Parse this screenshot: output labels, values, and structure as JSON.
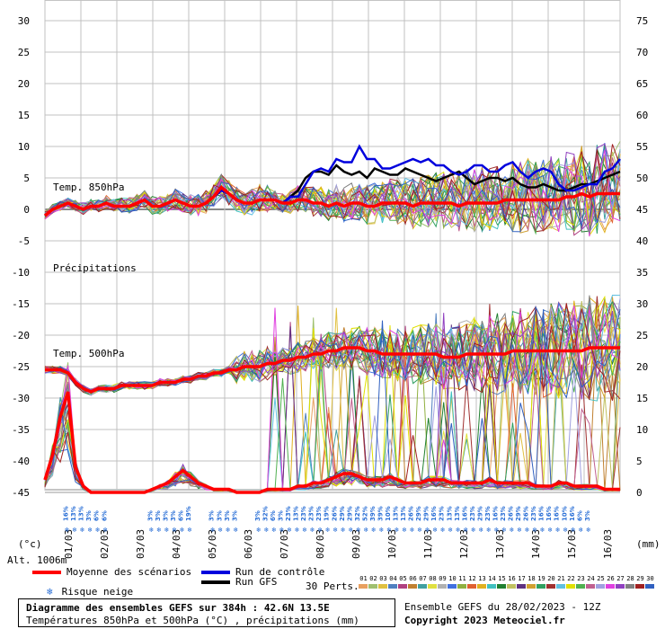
{
  "chart_data": {
    "type": "line",
    "left_axis": {
      "ticks": [
        30,
        25,
        20,
        15,
        10,
        5,
        0,
        -5,
        -10,
        -15,
        -20,
        -25,
        -30,
        -35,
        -40,
        -45
      ],
      "unit_label": "(°c)",
      "range": [
        -45,
        30
      ]
    },
    "right_axis": {
      "ticks": [
        75,
        70,
        65,
        60,
        55,
        50,
        45,
        40,
        35,
        30,
        25,
        20,
        15,
        10,
        5,
        0
      ],
      "unit_label": "(mm)",
      "range": [
        0,
        75
      ]
    },
    "x_ticks": [
      "01/03",
      "02/03",
      "03/03",
      "04/03",
      "05/03",
      "06/03",
      "07/03",
      "08/03",
      "09/03",
      "10/03",
      "11/03",
      "12/03",
      "13/03",
      "14/03",
      "15/03",
      "16/03"
    ],
    "altitude_label": "Alt. 1006m",
    "annotations": {
      "t850": "Temp. 850hPa",
      "precip": "Précipitations",
      "t500": "Temp. 500hPa"
    },
    "snow_risk": [
      {
        "t": 3,
        "v": "16%"
      },
      {
        "t": 4,
        "v": "13%"
      },
      {
        "t": 5,
        "v": "13%"
      },
      {
        "t": 6,
        "v": "3%"
      },
      {
        "t": 7,
        "v": "6%"
      },
      {
        "t": 8,
        "v": "6%"
      },
      {
        "t": 14,
        "v": "3%"
      },
      {
        "t": 15,
        "v": "3%"
      },
      {
        "t": 16,
        "v": "3%"
      },
      {
        "t": 17,
        "v": "3%"
      },
      {
        "t": 18,
        "v": "6%"
      },
      {
        "t": 19,
        "v": "19%"
      },
      {
        "t": 22,
        "v": "3%"
      },
      {
        "t": 23,
        "v": "3%"
      },
      {
        "t": 24,
        "v": "3%"
      },
      {
        "t": 25,
        "v": "3%"
      },
      {
        "t": 28,
        "v": "3%"
      },
      {
        "t": 29,
        "v": "32%"
      },
      {
        "t": 30,
        "v": "6%"
      },
      {
        "t": 31,
        "v": "3%"
      },
      {
        "t": 32,
        "v": "23%"
      },
      {
        "t": 33,
        "v": "13%"
      },
      {
        "t": 34,
        "v": "23%"
      },
      {
        "t": 35,
        "v": "23%"
      },
      {
        "t": 36,
        "v": "23%"
      },
      {
        "t": 37,
        "v": "19%"
      },
      {
        "t": 38,
        "v": "26%"
      },
      {
        "t": 39,
        "v": "29%"
      },
      {
        "t": 40,
        "v": "29%"
      },
      {
        "t": 41,
        "v": "32%"
      },
      {
        "t": 42,
        "v": "52%"
      },
      {
        "t": 43,
        "v": "39%"
      },
      {
        "t": 44,
        "v": "39%"
      },
      {
        "t": 45,
        "v": "10%"
      },
      {
        "t": 46,
        "v": "13%"
      },
      {
        "t": 47,
        "v": "13%"
      },
      {
        "t": 48,
        "v": "26%"
      },
      {
        "t": 49,
        "v": "29%"
      },
      {
        "t": 50,
        "v": "29%"
      },
      {
        "t": 51,
        "v": "16%"
      },
      {
        "t": 52,
        "v": "23%"
      },
      {
        "t": 53,
        "v": "13%"
      },
      {
        "t": 54,
        "v": "13%"
      },
      {
        "t": 55,
        "v": "16%"
      },
      {
        "t": 56,
        "v": "23%"
      },
      {
        "t": 57,
        "v": "29%"
      },
      {
        "t": 58,
        "v": "23%"
      },
      {
        "t": 59,
        "v": "16%"
      },
      {
        "t": 60,
        "v": "23%"
      },
      {
        "t": 61,
        "v": "26%"
      },
      {
        "t": 62,
        "v": "29%"
      },
      {
        "t": 63,
        "v": "26%"
      },
      {
        "t": 64,
        "v": "23%"
      },
      {
        "t": 65,
        "v": "16%"
      },
      {
        "t": 66,
        "v": "16%"
      },
      {
        "t": 67,
        "v": "16%"
      },
      {
        "t": 68,
        "v": "10%"
      },
      {
        "t": 69,
        "v": "16%"
      },
      {
        "t": 70,
        "v": "6%"
      },
      {
        "t": 71,
        "v": "3%"
      }
    ],
    "series_summary": {
      "t850_mean": [
        -1,
        0,
        0.5,
        1,
        0.5,
        0,
        0.5,
        0.5,
        1,
        0.5,
        0.5,
        0.5,
        1,
        1.5,
        0.5,
        0.5,
        1,
        1.5,
        1,
        0.5,
        0.5,
        1,
        2,
        3.5,
        2.5,
        1.5,
        1,
        1,
        1.5,
        1.5,
        1.5,
        1,
        1,
        1.5,
        1.5,
        1,
        1,
        0.5,
        1,
        0.5,
        1,
        1,
        0.5,
        0.5,
        1,
        1,
        1,
        1,
        0.5,
        1,
        1,
        1,
        1,
        1,
        0.5,
        1,
        1,
        1,
        1,
        1,
        1.5,
        1.5,
        1.5,
        1.5,
        1.5,
        1.5,
        1.5,
        1.5,
        2,
        2,
        2.5,
        2,
        2.5,
        2.5,
        2.5,
        2.5
      ],
      "t500_mean": [
        -25.5,
        -25.5,
        -25.5,
        -26,
        -27.5,
        -28.5,
        -29,
        -28.5,
        -28.5,
        -28.5,
        -28,
        -28,
        -28,
        -28,
        -28,
        -27.5,
        -27.5,
        -27.5,
        -27,
        -27,
        -26.5,
        -26.5,
        -26,
        -26,
        -25.5,
        -25.5,
        -25,
        -25,
        -25,
        -24.5,
        -24.5,
        -24,
        -24,
        -23.5,
        -23.5,
        -23,
        -23,
        -22.5,
        -22.5,
        -22,
        -22,
        -22,
        -22.5,
        -22.5,
        -23,
        -23,
        -23,
        -23,
        -23,
        -23,
        -23,
        -23,
        -23.5,
        -23.5,
        -23.5,
        -23,
        -23,
        -23,
        -23,
        -23,
        -23,
        -22.5,
        -22.5,
        -22.5,
        -22.5,
        -22.5,
        -22.5,
        -22.5,
        -22.5,
        -22.5,
        -22.5,
        -22,
        -22,
        -22,
        -22,
        -22
      ],
      "precip_mean_mm": [
        2,
        6,
        12,
        16,
        4,
        1,
        0,
        0,
        0,
        0,
        0,
        0,
        0,
        0,
        0.5,
        1,
        1.5,
        2.5,
        3.5,
        2.5,
        1.5,
        1,
        0.5,
        0.5,
        0.5,
        0,
        0,
        0,
        0,
        0.5,
        0.5,
        0.5,
        0.5,
        1,
        1,
        1.5,
        1.5,
        2,
        2.5,
        3,
        3,
        2.5,
        2,
        2,
        2,
        2.5,
        2,
        1.5,
        1.5,
        1.5,
        2,
        2,
        2,
        1.5,
        1.5,
        1.5,
        1.5,
        1.5,
        2,
        1.5,
        1.5,
        1.5,
        1.5,
        1.5,
        1,
        1,
        1,
        1.5,
        1.5,
        1,
        1,
        1,
        1,
        0.5,
        0.5,
        0.5
      ],
      "t850_control": [
        -1,
        0,
        0.5,
        1,
        0.5,
        0,
        0.5,
        0.5,
        1,
        0.5,
        0.5,
        0.5,
        1,
        1.5,
        0.5,
        0.5,
        1,
        1.5,
        1,
        0.5,
        0.5,
        1,
        2,
        3,
        2.5,
        1.5,
        1,
        1,
        1.5,
        1.5,
        1.5,
        1,
        2,
        2,
        4,
        6,
        6.5,
        6,
        8,
        7.5,
        7.5,
        10,
        8,
        8,
        6.5,
        6.5,
        7,
        7.5,
        8,
        7.5,
        8,
        7,
        7,
        6,
        5.5,
        6,
        7,
        7,
        6,
        6,
        7,
        7.5,
        6,
        5,
        6,
        6.5,
        6,
        4,
        3,
        3,
        3.5,
        4,
        4,
        6,
        6.5,
        8
      ],
      "t850_gfs": [
        -1,
        0,
        0.5,
        1,
        0.5,
        0,
        0.5,
        0.5,
        1,
        0.5,
        0.5,
        0.5,
        1,
        1.5,
        0.5,
        0.5,
        1,
        1.5,
        1,
        0.5,
        0.5,
        1,
        2,
        3,
        2.5,
        1.5,
        1,
        1,
        1.5,
        1.5,
        1.5,
        1,
        2,
        3,
        5,
        6,
        6,
        5.5,
        7,
        6,
        5.5,
        6,
        5,
        6.5,
        6,
        5.5,
        5.5,
        6.5,
        6,
        5.5,
        5,
        4.5,
        5,
        5.5,
        6,
        5,
        4,
        4.5,
        5,
        5,
        4.5,
        5,
        4,
        3.5,
        3.5,
        4,
        3.5,
        3,
        3,
        3.5,
        4,
        4,
        4.5,
        5,
        5.5,
        6
      ]
    },
    "legend": {
      "mean": "Moyenne des scénarios",
      "control": "Run de contrôle",
      "gfs": "Run GFS",
      "snow": "Risque neige",
      "perts_title": "30 Perts.",
      "pert_ids": [
        "01",
        "02",
        "03",
        "04",
        "05",
        "06",
        "07",
        "08",
        "09",
        "10",
        "11",
        "12",
        "13",
        "14",
        "15",
        "16",
        "17",
        "18",
        "19",
        "20",
        "21",
        "22",
        "23",
        "24",
        "25",
        "26",
        "27",
        "28",
        "29",
        "30"
      ]
    },
    "colors": {
      "mean": "#ff0000",
      "control": "#0000dd",
      "gfs": "#000000",
      "grid": "#c0c0c0",
      "pert_swatches": [
        "#e8a060",
        "#a0c070",
        "#e0c040",
        "#5080c0",
        "#b04080",
        "#c08030",
        "#40a0a0",
        "#e0e040",
        "#b0b0b0",
        "#4070e0",
        "#90b040",
        "#e06030",
        "#e0b020",
        "#40c0c0",
        "#208030",
        "#c0c060",
        "#603080",
        "#d0a030",
        "#30a060",
        "#a03030",
        "#60c0e0",
        "#e0e000",
        "#50b050",
        "#c06090",
        "#a0a0e0",
        "#e040e0",
        "#9040c0",
        "#808080",
        "#a02020",
        "#3060c0"
      ]
    }
  },
  "footer": {
    "title_line1": "Diagramme des ensembles GEFS sur 384h : 42.6N 13.5E",
    "title_line2": "Températures 850hPa et 500hPa (°C) , précipitations (mm)",
    "ensemble": "Ensemble GEFS du 28/02/2023 - 12Z",
    "copyright": "Copyright 2023 Meteociel.fr"
  }
}
